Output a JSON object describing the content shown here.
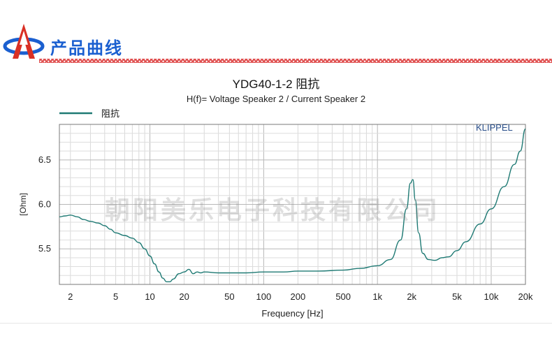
{
  "header": {
    "section_title": "产品曲线"
  },
  "chart_data": {
    "type": "line",
    "title": "YDG40-1-2 阻抗",
    "subtitle": "H(f)= Voltage Speaker 2 / Current Speaker 2",
    "xlabel": "Frequency [Hz]",
    "ylabel": "[Ohm]",
    "x_scale": "log",
    "xlim": [
      1.6,
      20000
    ],
    "ylim": [
      5.1,
      6.9
    ],
    "grid": true,
    "legend_position": "top-left",
    "x_ticks": [
      2,
      5,
      10,
      20,
      50,
      100,
      200,
      500,
      1000,
      2000,
      5000,
      10000,
      20000
    ],
    "x_tick_labels": [
      "2",
      "5",
      "10",
      "20",
      "50",
      "100",
      "200",
      "500",
      "1k",
      "2k",
      "5k",
      "10k",
      "20k"
    ],
    "y_ticks": [
      5.5,
      6.0,
      6.5
    ],
    "y_tick_labels": [
      "5.5",
      "6.0",
      "6.5"
    ],
    "series": [
      {
        "name": "阻抗",
        "color": "#1f7a74",
        "x": [
          1.6,
          1.8,
          2.0,
          2.3,
          2.6,
          3.0,
          3.5,
          4.0,
          4.5,
          5.0,
          6.0,
          7.0,
          8.0,
          9.0,
          10.0,
          11.0,
          12.0,
          13.0,
          14.0,
          15.0,
          16.0,
          18.0,
          20.0,
          22.0,
          24.0,
          26.0,
          28.0,
          30.0,
          40.0,
          50.0,
          70.0,
          100.0,
          150.0,
          200.0,
          300.0,
          500.0,
          700.0,
          1000.0,
          1300.0,
          1600.0,
          1800.0,
          1950.0,
          2050.0,
          2150.0,
          2300.0,
          2500.0,
          2800.0,
          3200.0,
          3700.0,
          4200.0,
          5000.0,
          6000.0,
          8000.0,
          10000.0,
          13000.0,
          16000.0,
          18000.0,
          20000.0
        ],
        "y": [
          5.86,
          5.87,
          5.88,
          5.86,
          5.83,
          5.81,
          5.79,
          5.76,
          5.72,
          5.68,
          5.65,
          5.62,
          5.57,
          5.5,
          5.42,
          5.33,
          5.24,
          5.17,
          5.13,
          5.13,
          5.16,
          5.22,
          5.24,
          5.27,
          5.22,
          5.24,
          5.23,
          5.24,
          5.23,
          5.23,
          5.23,
          5.24,
          5.24,
          5.25,
          5.25,
          5.26,
          5.28,
          5.31,
          5.38,
          5.6,
          5.95,
          6.24,
          6.28,
          6.05,
          5.68,
          5.45,
          5.38,
          5.37,
          5.4,
          5.41,
          5.48,
          5.58,
          5.78,
          5.95,
          6.2,
          6.45,
          6.6,
          6.85
        ]
      }
    ]
  },
  "brand_mark": "KLIPPEL",
  "watermark": "朝阳美乐电子科技有限公司",
  "colors": {
    "accent_blue": "#1a5fd0",
    "logo_red": "#d93025",
    "curve": "#1f7a74",
    "hatch": "#e05050"
  }
}
